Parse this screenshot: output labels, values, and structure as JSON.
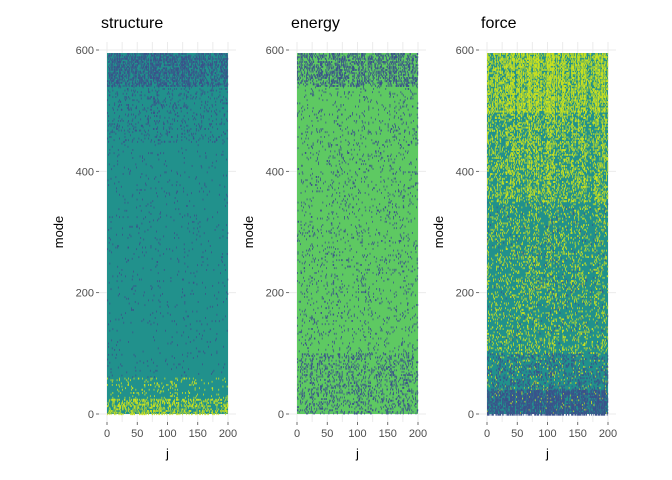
{
  "chart_data": [
    {
      "type": "heatmap",
      "title": "structure",
      "xlabel": "j",
      "ylabel": "mode",
      "xlim": [
        0,
        200
      ],
      "ylim": [
        0,
        600
      ],
      "x_ticks": [
        "0",
        "50",
        "100",
        "150",
        "200"
      ],
      "x_minor_ticks": [
        "25",
        "75",
        "125",
        "175"
      ],
      "y_ticks": [
        "0",
        "200",
        "400",
        "600"
      ],
      "dominant_value": 0.5,
      "value_summary": "Mostly teal; navy specks concentrated near the top (mode 500-600); yellow-green speckles near the bottom (mode 0-60).",
      "bands": [
        {
          "mode_range": [
            540,
            595
          ],
          "navy": 0.35,
          "yellow": 0.0
        },
        {
          "mode_range": [
            450,
            540
          ],
          "navy": 0.08,
          "yellow": 0.0
        },
        {
          "mode_range": [
            60,
            450
          ],
          "navy": 0.02,
          "yellow": 0.0
        },
        {
          "mode_range": [
            25,
            60
          ],
          "navy": 0.0,
          "yellow": 0.06
        },
        {
          "mode_range": [
            0,
            25
          ],
          "navy": 0.0,
          "yellow": 0.3
        }
      ]
    },
    {
      "type": "heatmap",
      "title": "energy",
      "xlabel": "j",
      "ylabel": "mode",
      "xlim": [
        0,
        200
      ],
      "ylim": [
        0,
        600
      ],
      "x_ticks": [
        "0",
        "50",
        "100",
        "150",
        "200"
      ],
      "x_minor_ticks": [
        "25",
        "75",
        "125",
        "175"
      ],
      "y_ticks": [
        "0",
        "200",
        "400",
        "600"
      ],
      "dominant_value": 0.75,
      "value_summary": "Mostly light green; navy specks dense near the top, sparse in the middle, denser again near the bottom.",
      "bands": [
        {
          "mode_range": [
            540,
            595
          ],
          "navy": 0.3,
          "yellow": 0.0
        },
        {
          "mode_range": [
            100,
            540
          ],
          "navy": 0.05,
          "yellow": 0.0
        },
        {
          "mode_range": [
            0,
            100
          ],
          "navy": 0.15,
          "yellow": 0.0
        }
      ]
    },
    {
      "type": "heatmap",
      "title": "force",
      "xlabel": "j",
      "ylabel": "mode",
      "xlim": [
        0,
        200
      ],
      "ylim": [
        0,
        600
      ],
      "x_ticks": [
        "0",
        "50",
        "100",
        "150",
        "200"
      ],
      "x_minor_ticks": [
        "25",
        "75",
        "125",
        "175"
      ],
      "y_ticks": [
        "0",
        "200",
        "400",
        "600"
      ],
      "dominant_value": 0.45,
      "value_summary": "Teal with dense yellow-green streaks at the top fading downward; navy band near the bottom (mode 0-40).",
      "bands": [
        {
          "mode_range": [
            500,
            595
          ],
          "navy": 0.0,
          "yellow": 0.45
        },
        {
          "mode_range": [
            350,
            500
          ],
          "navy": 0.0,
          "yellow": 0.25
        },
        {
          "mode_range": [
            100,
            350
          ],
          "navy": 0.02,
          "yellow": 0.12
        },
        {
          "mode_range": [
            40,
            100
          ],
          "navy": 0.15,
          "yellow": 0.05
        },
        {
          "mode_range": [
            0,
            40
          ],
          "navy": 0.55,
          "yellow": 0.02
        }
      ]
    }
  ],
  "colors": {
    "navy": "#3b528b",
    "teal": "#21918c",
    "green": "#5ec962",
    "yellow": "#c8e020",
    "grid": "#ebebeb",
    "tick_text": "#4d4d4d"
  }
}
